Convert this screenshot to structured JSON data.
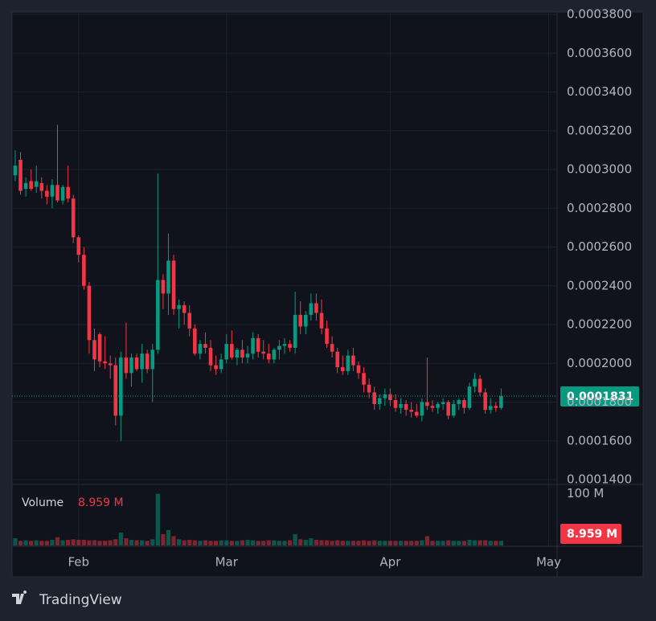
{
  "chart_data": {
    "type": "candlestick",
    "x": [
      20,
      21,
      22,
      23,
      24,
      25,
      26,
      27,
      28,
      29,
      30,
      31,
      32,
      33,
      34,
      35,
      36,
      37,
      38,
      39,
      40,
      41,
      42,
      43,
      44,
      45,
      46,
      47,
      48,
      49,
      50,
      51,
      52,
      53,
      54,
      55,
      56,
      57,
      58,
      59,
      60,
      61,
      62,
      63,
      64,
      65,
      66,
      67,
      68,
      69,
      70,
      71,
      72,
      73,
      74,
      75,
      76,
      77,
      78,
      79,
      80,
      81,
      82,
      83,
      84,
      85,
      86,
      87,
      88,
      89,
      90,
      91,
      92,
      93,
      94,
      95,
      96,
      97,
      98,
      99,
      100,
      101,
      102,
      103,
      104,
      105,
      106,
      107,
      108,
      109,
      110,
      111,
      112
    ],
    "open": [
      0.000297,
      0.000305,
      0.00029,
      0.000294,
      0.000291,
      0.000293,
      0.000289,
      0.000286,
      0.000292,
      0.000284,
      0.000291,
      0.000285,
      0.000265,
      0.000256,
      0.00024,
      0.000212,
      0.000215,
      0.000201,
      0.0002,
      0.000199,
      0.000173,
      0.000203,
      0.000195,
      0.000203,
      0.000197,
      0.000205,
      0.000197,
      0.000207,
      0.000243,
      0.000236,
      0.000253,
      0.000228,
      0.00023,
      0.000226,
      0.000218,
      0.000205,
      0.00021,
      0.000208,
      0.000199,
      0.000197,
      0.000202,
      0.00021,
      0.000203,
      0.000207,
      0.000203,
      0.000205,
      0.000213,
      0.000206,
      0.000205,
      0.000202,
      0.000207,
      0.000209,
      0.00021,
      0.000208,
      0.000225,
      0.000219,
      0.000225,
      0.000231,
      0.000226,
      0.000218,
      0.00021,
      0.000206,
      0.000198,
      0.000196,
      0.000204,
      0.000199,
      0.000195,
      0.000189,
      0.000185,
      0.000179,
      0.000182,
      0.000184,
      0.000181,
      0.000177,
      0.000179,
      0.000176,
      0.000175,
      0.000173,
      0.00018,
      0.000178,
      0.000177,
      0.000179,
      0.00018,
      0.000173,
      0.000179,
      0.000181,
      0.000177,
      0.000188,
      0.000192,
      0.000185,
      0.000176,
      0.000178,
      0.000177
    ],
    "high": [
      0.00031,
      0.000309,
      0.000296,
      0.0003,
      0.000302,
      0.000296,
      0.000292,
      0.000295,
      0.000323,
      0.000292,
      0.000302,
      0.000287,
      0.000266,
      0.00026,
      0.000242,
      0.000218,
      0.000216,
      0.000214,
      0.000204,
      0.000203,
      0.000206,
      0.000221,
      0.000205,
      0.000205,
      0.00021,
      0.000207,
      0.00021,
      0.000298,
      0.000246,
      0.000267,
      0.000256,
      0.000233,
      0.000232,
      0.00023,
      0.00022,
      0.000212,
      0.000216,
      0.000212,
      0.000204,
      0.000205,
      0.000215,
      0.000217,
      0.000208,
      0.000212,
      0.000209,
      0.000216,
      0.000215,
      0.000212,
      0.00021,
      0.000208,
      0.000212,
      0.000213,
      0.000212,
      0.000237,
      0.000232,
      0.000227,
      0.000236,
      0.000236,
      0.000233,
      0.000222,
      0.000214,
      0.000208,
      0.000204,
      0.000207,
      0.000208,
      0.000201,
      0.000198,
      0.000192,
      0.000188,
      0.000184,
      0.000187,
      0.000187,
      0.000184,
      0.000182,
      0.000181,
      0.00018,
      0.000179,
      0.000182,
      0.000203,
      0.000181,
      0.00018,
      0.000182,
      0.000181,
      0.000181,
      0.000182,
      0.000182,
      0.00019,
      0.000195,
      0.000194,
      0.000187,
      0.000182,
      0.00018,
      0.000187
    ],
    "low": [
      0.000294,
      0.000287,
      0.000286,
      0.000289,
      0.000288,
      0.000285,
      0.000282,
      0.00028,
      0.000283,
      0.000282,
      0.000283,
      0.000262,
      0.000252,
      0.000238,
      0.000205,
      0.000196,
      0.000198,
      0.000197,
      0.000192,
      0.000168,
      0.00016,
      0.000192,
      0.000188,
      0.000196,
      0.00019,
      0.000195,
      0.00018,
      0.000205,
      0.000228,
      0.000225,
      0.000225,
      0.000218,
      0.00022,
      0.000214,
      0.000204,
      0.000202,
      0.000205,
      0.000196,
      0.000194,
      0.000195,
      0.0002,
      0.000202,
      0.000199,
      0.0002,
      0.0002,
      0.000202,
      0.000203,
      0.000202,
      0.0002,
      0.0002,
      0.000202,
      0.000205,
      0.000206,
      0.000205,
      0.000215,
      0.000215,
      0.000222,
      0.000222,
      0.000215,
      0.000208,
      0.000203,
      0.000195,
      0.000194,
      0.000194,
      0.000196,
      0.000192,
      0.000185,
      0.000182,
      0.000176,
      0.000176,
      0.000178,
      0.000178,
      0.000175,
      0.000174,
      0.000173,
      0.000172,
      0.000172,
      0.00017,
      0.000176,
      0.000175,
      0.000174,
      0.000176,
      0.000171,
      0.000172,
      0.000176,
      0.000174,
      0.000176,
      0.000185,
      0.000183,
      0.000174,
      0.000174,
      0.000175,
      0.000176
    ],
    "close": [
      0.000302,
      0.000289,
      0.000293,
      0.00029,
      0.000294,
      0.000289,
      0.000286,
      0.000292,
      0.000284,
      0.000291,
      0.000285,
      0.000265,
      0.000256,
      0.00024,
      0.000212,
      0.000202,
      0.000201,
      0.0002,
      0.000199,
      0.000173,
      0.000203,
      0.000195,
      0.000203,
      0.000197,
      0.000205,
      0.000197,
      0.000207,
      0.000243,
      0.000236,
      0.000253,
      0.000228,
      0.00023,
      0.000226,
      0.000218,
      0.000205,
      0.00021,
      0.000208,
      0.000199,
      0.000197,
      0.000202,
      0.00021,
      0.000203,
      0.000207,
      0.000203,
      0.000205,
      0.000213,
      0.000206,
      0.000205,
      0.000202,
      0.000207,
      0.000209,
      0.00021,
      0.000208,
      0.000225,
      0.000219,
      0.000225,
      0.000231,
      0.000226,
      0.000218,
      0.00021,
      0.000206,
      0.000198,
      0.000196,
      0.000204,
      0.000199,
      0.000195,
      0.000189,
      0.000185,
      0.000179,
      0.000182,
      0.000184,
      0.000181,
      0.000177,
      0.000179,
      0.000176,
      0.000175,
      0.000173,
      0.00018,
      0.000178,
      0.000177,
      0.000179,
      0.00018,
      0.000173,
      0.000179,
      0.000181,
      0.000177,
      0.000188,
      0.000192,
      0.000185,
      0.000176,
      0.000178,
      0.000177,
      0.0001831
    ],
    "up_color": "#089981",
    "down_color": "#f23645",
    "xlim": [
      19.4,
      122.6
    ],
    "xticks": [
      {
        "value": 32,
        "label": "Feb"
      },
      {
        "value": 60,
        "label": "Mar"
      },
      {
        "value": 91,
        "label": "Apr"
      },
      {
        "value": 121,
        "label": "May"
      }
    ],
    "ylim": [
      0.00014,
      0.00038
    ],
    "yticks": [
      {
        "value": 0.00014,
        "label": "0.0001400"
      },
      {
        "value": 0.00016,
        "label": "0.0001600"
      },
      {
        "value": 0.00018,
        "label": "0.0001800"
      },
      {
        "value": 0.0002,
        "label": "0.0002000"
      },
      {
        "value": 0.00022,
        "label": "0.0002200"
      },
      {
        "value": 0.00024,
        "label": "0.0002400"
      },
      {
        "value": 0.00026,
        "label": "0.0002600"
      },
      {
        "value": 0.00028,
        "label": "0.0002800"
      },
      {
        "value": 0.0003,
        "label": "0.0003000"
      },
      {
        "value": 0.00032,
        "label": "0.0003200"
      },
      {
        "value": 0.00034,
        "label": "0.0003400"
      },
      {
        "value": 0.00036,
        "label": "0.0003600"
      },
      {
        "value": 0.00038,
        "label": "0.0003800"
      }
    ],
    "grid": true,
    "volume": {
      "title": "Volume",
      "values": [
        14,
        9,
        10,
        9,
        10,
        9,
        9,
        11,
        16,
        10,
        11,
        12,
        11,
        11,
        10,
        10,
        9,
        9,
        10,
        12,
        25,
        14,
        11,
        10,
        10,
        9,
        12,
        100,
        22,
        30,
        18,
        12,
        10,
        11,
        10,
        9,
        10,
        9,
        9,
        10,
        10,
        9,
        9,
        10,
        11,
        10,
        9,
        9,
        10,
        10,
        9,
        9,
        10,
        22,
        12,
        11,
        14,
        11,
        10,
        10,
        9,
        10,
        9,
        9,
        9,
        9,
        10,
        9,
        10,
        9,
        9,
        9,
        9,
        9,
        9,
        9,
        9,
        10,
        18,
        9,
        9,
        9,
        10,
        9,
        9,
        9,
        11,
        10,
        10,
        10,
        9,
        9,
        8.959
      ],
      "last_label": "8.959 M",
      "ylim": [
        0,
        115
      ],
      "yticks": [
        {
          "value": 100,
          "label": "100 M"
        }
      ]
    }
  },
  "footer": {
    "brand": "TradingView"
  }
}
